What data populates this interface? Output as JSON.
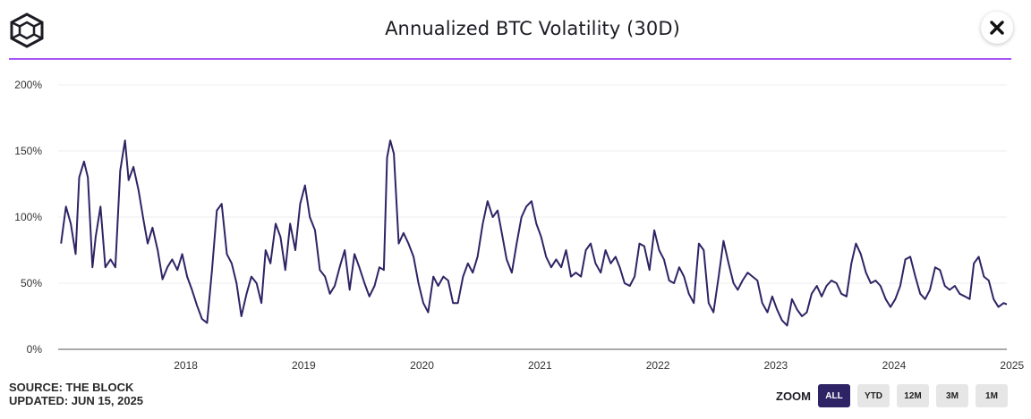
{
  "header": {
    "title": "Annualized BTC Volatility (30D)",
    "accent_color": "#a855f7"
  },
  "footer": {
    "source": "SOURCE: THE BLOCK",
    "updated": "UPDATED: JUN 15, 2025"
  },
  "zoom": {
    "label": "ZOOM",
    "options": [
      "ALL",
      "YTD",
      "12M",
      "3M",
      "1M"
    ],
    "selected": "ALL"
  },
  "chart_data": {
    "type": "line",
    "title": "Annualized BTC Volatility (30D)",
    "y_axis": {
      "range": [
        0,
        200
      ],
      "ticks": [
        "0%",
        "50%",
        "100%",
        "150%",
        "200%"
      ],
      "unit": "%"
    },
    "x_axis": {
      "range": [
        "2017-06",
        "2025-06-15"
      ],
      "ticks": [
        "2018",
        "2019",
        "2020",
        "2021",
        "2022",
        "2023",
        "2024",
        "2025"
      ]
    },
    "grid": true,
    "legend": "none",
    "line_color": "#2e2465",
    "series": [
      {
        "points": [
          [
            "2017-06-10",
            80
          ],
          [
            "2017-06-25",
            108
          ],
          [
            "2017-07-10",
            95
          ],
          [
            "2017-07-25",
            72
          ],
          [
            "2017-08-05",
            130
          ],
          [
            "2017-08-20",
            142
          ],
          [
            "2017-09-01",
            130
          ],
          [
            "2017-09-15",
            62
          ],
          [
            "2017-09-25",
            85
          ],
          [
            "2017-10-10",
            108
          ],
          [
            "2017-10-25",
            62
          ],
          [
            "2017-11-10",
            68
          ],
          [
            "2017-11-25",
            62
          ],
          [
            "2017-12-10",
            135
          ],
          [
            "2017-12-25",
            158
          ],
          [
            "2018-01-05",
            128
          ],
          [
            "2018-01-20",
            138
          ],
          [
            "2018-02-05",
            120
          ],
          [
            "2018-02-20",
            98
          ],
          [
            "2018-03-05",
            80
          ],
          [
            "2018-03-20",
            92
          ],
          [
            "2018-04-05",
            75
          ],
          [
            "2018-04-20",
            53
          ],
          [
            "2018-05-05",
            62
          ],
          [
            "2018-05-20",
            68
          ],
          [
            "2018-06-05",
            60
          ],
          [
            "2018-06-20",
            72
          ],
          [
            "2018-07-05",
            55
          ],
          [
            "2018-07-20",
            45
          ],
          [
            "2018-08-05",
            33
          ],
          [
            "2018-08-20",
            23
          ],
          [
            "2018-09-05",
            20
          ],
          [
            "2018-09-20",
            60
          ],
          [
            "2018-10-05",
            105
          ],
          [
            "2018-10-20",
            110
          ],
          [
            "2018-11-05",
            72
          ],
          [
            "2018-11-20",
            65
          ],
          [
            "2018-12-05",
            50
          ],
          [
            "2018-12-20",
            25
          ],
          [
            "2019-01-05",
            42
          ],
          [
            "2019-01-20",
            55
          ],
          [
            "2019-02-05",
            50
          ],
          [
            "2019-02-20",
            35
          ],
          [
            "2019-03-05",
            75
          ],
          [
            "2019-03-20",
            65
          ],
          [
            "2019-04-05",
            95
          ],
          [
            "2019-04-20",
            85
          ],
          [
            "2019-05-05",
            60
          ],
          [
            "2019-05-20",
            95
          ],
          [
            "2019-06-05",
            75
          ],
          [
            "2019-06-20",
            110
          ],
          [
            "2019-07-05",
            124
          ],
          [
            "2019-07-20",
            100
          ],
          [
            "2019-08-05",
            90
          ],
          [
            "2019-08-20",
            60
          ],
          [
            "2019-09-05",
            55
          ],
          [
            "2019-09-20",
            42
          ],
          [
            "2019-10-05",
            48
          ],
          [
            "2019-10-20",
            62
          ],
          [
            "2019-11-05",
            75
          ],
          [
            "2019-11-20",
            45
          ],
          [
            "2019-12-05",
            72
          ],
          [
            "2019-12-20",
            62
          ],
          [
            "2020-01-05",
            50
          ],
          [
            "2020-01-20",
            40
          ],
          [
            "2020-02-05",
            48
          ],
          [
            "2020-02-20",
            62
          ],
          [
            "2020-03-05",
            60
          ],
          [
            "2020-03-15",
            145
          ],
          [
            "2020-03-25",
            158
          ],
          [
            "2020-04-05",
            148
          ],
          [
            "2020-04-20",
            80
          ],
          [
            "2020-05-05",
            88
          ],
          [
            "2020-05-20",
            80
          ],
          [
            "2020-06-05",
            70
          ],
          [
            "2020-06-20",
            50
          ],
          [
            "2020-07-05",
            35
          ],
          [
            "2020-07-20",
            28
          ],
          [
            "2020-08-05",
            55
          ],
          [
            "2020-08-20",
            48
          ],
          [
            "2020-09-05",
            55
          ],
          [
            "2020-09-20",
            52
          ],
          [
            "2020-10-05",
            35
          ],
          [
            "2020-10-20",
            35
          ],
          [
            "2020-11-05",
            55
          ],
          [
            "2020-11-20",
            65
          ],
          [
            "2020-12-05",
            58
          ],
          [
            "2020-12-20",
            70
          ],
          [
            "2021-01-05",
            95
          ],
          [
            "2021-01-20",
            112
          ],
          [
            "2021-02-05",
            100
          ],
          [
            "2021-02-20",
            105
          ],
          [
            "2021-03-05",
            88
          ],
          [
            "2021-03-20",
            68
          ],
          [
            "2021-04-05",
            58
          ],
          [
            "2021-04-20",
            80
          ],
          [
            "2021-05-05",
            100
          ],
          [
            "2021-05-20",
            108
          ],
          [
            "2021-06-05",
            112
          ],
          [
            "2021-06-20",
            95
          ],
          [
            "2021-07-05",
            85
          ],
          [
            "2021-07-20",
            70
          ],
          [
            "2021-08-05",
            62
          ],
          [
            "2021-08-20",
            68
          ],
          [
            "2021-09-05",
            62
          ],
          [
            "2021-09-20",
            75
          ],
          [
            "2021-10-05",
            55
          ],
          [
            "2021-10-20",
            58
          ],
          [
            "2021-11-05",
            55
          ],
          [
            "2021-11-20",
            75
          ],
          [
            "2021-12-05",
            80
          ],
          [
            "2021-12-20",
            65
          ],
          [
            "2022-01-05",
            58
          ],
          [
            "2022-01-20",
            75
          ],
          [
            "2022-02-05",
            65
          ],
          [
            "2022-02-20",
            70
          ],
          [
            "2022-03-05",
            62
          ],
          [
            "2022-03-20",
            50
          ],
          [
            "2022-04-05",
            48
          ],
          [
            "2022-04-20",
            55
          ],
          [
            "2022-05-05",
            80
          ],
          [
            "2022-05-20",
            78
          ],
          [
            "2022-06-05",
            60
          ],
          [
            "2022-06-20",
            90
          ],
          [
            "2022-07-05",
            75
          ],
          [
            "2022-07-20",
            68
          ],
          [
            "2022-08-05",
            52
          ],
          [
            "2022-08-20",
            50
          ],
          [
            "2022-09-05",
            62
          ],
          [
            "2022-09-20",
            55
          ],
          [
            "2022-10-05",
            42
          ],
          [
            "2022-10-20",
            35
          ],
          [
            "2022-11-05",
            80
          ],
          [
            "2022-11-20",
            75
          ],
          [
            "2022-12-05",
            35
          ],
          [
            "2022-12-20",
            28
          ],
          [
            "2023-01-05",
            55
          ],
          [
            "2023-01-20",
            82
          ],
          [
            "2023-02-05",
            65
          ],
          [
            "2023-02-20",
            50
          ],
          [
            "2023-03-05",
            45
          ],
          [
            "2023-03-20",
            52
          ],
          [
            "2023-04-05",
            58
          ],
          [
            "2023-04-20",
            55
          ],
          [
            "2023-05-05",
            52
          ],
          [
            "2023-05-20",
            35
          ],
          [
            "2023-06-05",
            28
          ],
          [
            "2023-06-20",
            40
          ],
          [
            "2023-07-05",
            30
          ],
          [
            "2023-07-20",
            22
          ],
          [
            "2023-08-05",
            18
          ],
          [
            "2023-08-20",
            38
          ],
          [
            "2023-09-05",
            30
          ],
          [
            "2023-09-20",
            25
          ],
          [
            "2023-10-05",
            28
          ],
          [
            "2023-10-20",
            42
          ],
          [
            "2023-11-05",
            48
          ],
          [
            "2023-11-20",
            40
          ],
          [
            "2023-12-05",
            48
          ],
          [
            "2023-12-20",
            52
          ],
          [
            "2024-01-05",
            50
          ],
          [
            "2024-01-20",
            42
          ],
          [
            "2024-02-05",
            40
          ],
          [
            "2024-02-20",
            65
          ],
          [
            "2024-03-05",
            80
          ],
          [
            "2024-03-20",
            72
          ],
          [
            "2024-04-05",
            58
          ],
          [
            "2024-04-20",
            50
          ],
          [
            "2024-05-05",
            52
          ],
          [
            "2024-05-20",
            48
          ],
          [
            "2024-06-05",
            38
          ],
          [
            "2024-06-20",
            32
          ],
          [
            "2024-07-05",
            38
          ],
          [
            "2024-07-20",
            48
          ],
          [
            "2024-08-05",
            68
          ],
          [
            "2024-08-20",
            70
          ],
          [
            "2024-09-05",
            55
          ],
          [
            "2024-09-20",
            42
          ],
          [
            "2024-10-05",
            38
          ],
          [
            "2024-10-20",
            45
          ],
          [
            "2024-11-05",
            62
          ],
          [
            "2024-11-20",
            60
          ],
          [
            "2024-12-05",
            48
          ],
          [
            "2024-12-20",
            45
          ],
          [
            "2025-01-05",
            48
          ],
          [
            "2025-01-20",
            42
          ],
          [
            "2025-02-05",
            40
          ],
          [
            "2025-02-20",
            38
          ],
          [
            "2025-03-05",
            65
          ],
          [
            "2025-03-20",
            70
          ],
          [
            "2025-04-05",
            55
          ],
          [
            "2025-04-20",
            52
          ],
          [
            "2025-05-05",
            38
          ],
          [
            "2025-05-20",
            32
          ],
          [
            "2025-06-05",
            35
          ],
          [
            "2025-06-15",
            34
          ]
        ]
      }
    ]
  }
}
